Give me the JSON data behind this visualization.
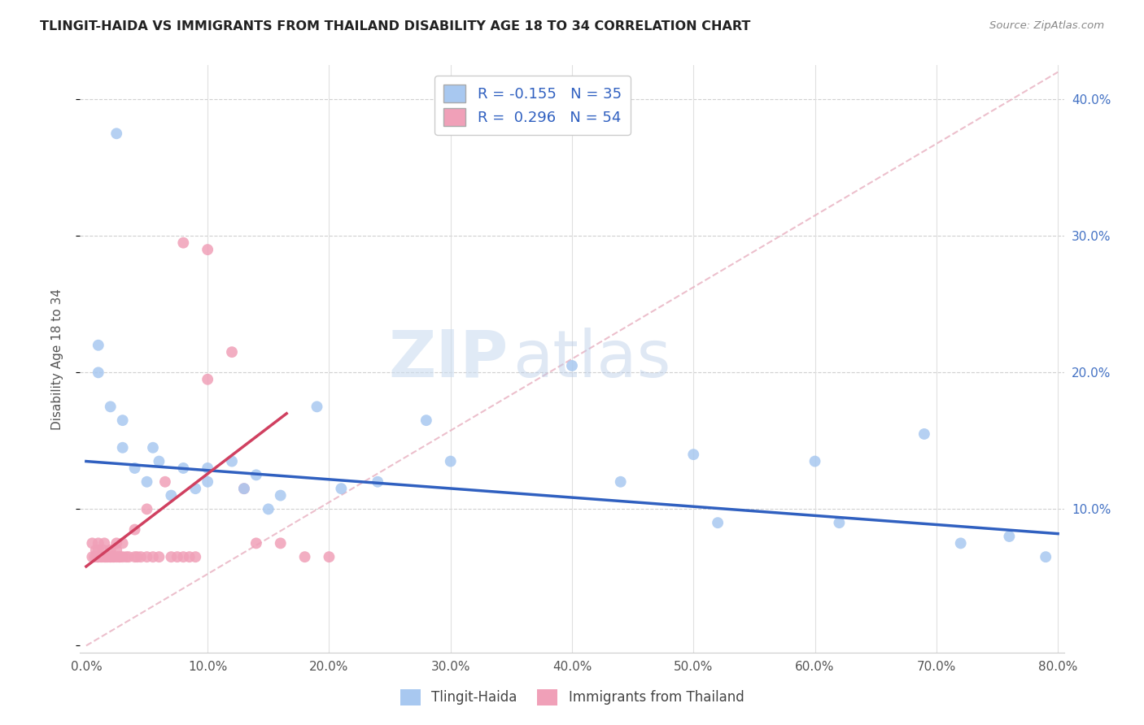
{
  "title": "TLINGIT-HAIDA VS IMMIGRANTS FROM THAILAND DISABILITY AGE 18 TO 34 CORRELATION CHART",
  "source": "Source: ZipAtlas.com",
  "ylabel": "Disability Age 18 to 34",
  "legend_label1": "Tlingit-Haida",
  "legend_label2": "Immigrants from Thailand",
  "r1": "-0.155",
  "n1": "35",
  "r2": "0.296",
  "n2": "54",
  "xlim": [
    -0.005,
    0.805
  ],
  "ylim": [
    -0.005,
    0.425
  ],
  "xticks": [
    0.0,
    0.1,
    0.2,
    0.3,
    0.4,
    0.5,
    0.6,
    0.7,
    0.8
  ],
  "yticks": [
    0.0,
    0.1,
    0.2,
    0.3,
    0.4
  ],
  "color_blue": "#a8c8f0",
  "color_pink": "#f0a0b8",
  "color_blue_line": "#3060c0",
  "color_pink_line": "#d04060",
  "watermark_zip": "ZIP",
  "watermark_atlas": "atlas",
  "blue_scatter_x": [
    0.025,
    0.01,
    0.01,
    0.02,
    0.03,
    0.03,
    0.04,
    0.05,
    0.055,
    0.06,
    0.07,
    0.08,
    0.09,
    0.1,
    0.1,
    0.12,
    0.13,
    0.14,
    0.15,
    0.16,
    0.19,
    0.21,
    0.24,
    0.28,
    0.3,
    0.4,
    0.44,
    0.5,
    0.52,
    0.6,
    0.62,
    0.69,
    0.72,
    0.76,
    0.79
  ],
  "blue_scatter_y": [
    0.375,
    0.22,
    0.2,
    0.175,
    0.165,
    0.145,
    0.13,
    0.12,
    0.145,
    0.135,
    0.11,
    0.13,
    0.115,
    0.13,
    0.12,
    0.135,
    0.115,
    0.125,
    0.1,
    0.11,
    0.175,
    0.115,
    0.12,
    0.165,
    0.135,
    0.205,
    0.12,
    0.14,
    0.09,
    0.135,
    0.09,
    0.155,
    0.075,
    0.08,
    0.065
  ],
  "pink_scatter_x": [
    0.005,
    0.005,
    0.007,
    0.008,
    0.009,
    0.01,
    0.01,
    0.01,
    0.01,
    0.012,
    0.013,
    0.014,
    0.015,
    0.015,
    0.016,
    0.017,
    0.018,
    0.02,
    0.02,
    0.02,
    0.022,
    0.023,
    0.025,
    0.025,
    0.025,
    0.027,
    0.028,
    0.03,
    0.03,
    0.033,
    0.035,
    0.04,
    0.04,
    0.042,
    0.045,
    0.05,
    0.05,
    0.055,
    0.06,
    0.065,
    0.07,
    0.075,
    0.08,
    0.085,
    0.09,
    0.1,
    0.12,
    0.13,
    0.14,
    0.16,
    0.18,
    0.2,
    0.1,
    0.08
  ],
  "pink_scatter_y": [
    0.065,
    0.075,
    0.065,
    0.07,
    0.065,
    0.065,
    0.07,
    0.075,
    0.065,
    0.065,
    0.065,
    0.07,
    0.065,
    0.075,
    0.065,
    0.065,
    0.065,
    0.065,
    0.07,
    0.065,
    0.065,
    0.065,
    0.065,
    0.075,
    0.07,
    0.065,
    0.065,
    0.075,
    0.065,
    0.065,
    0.065,
    0.065,
    0.085,
    0.065,
    0.065,
    0.1,
    0.065,
    0.065,
    0.065,
    0.12,
    0.065,
    0.065,
    0.295,
    0.065,
    0.065,
    0.195,
    0.215,
    0.115,
    0.075,
    0.075,
    0.065,
    0.065,
    0.29,
    0.065
  ],
  "blue_line_x": [
    0.0,
    0.8
  ],
  "blue_line_y": [
    0.135,
    0.082
  ],
  "pink_line_x": [
    0.0,
    0.165
  ],
  "pink_line_y": [
    0.058,
    0.17
  ],
  "diag_line_x": [
    0.0,
    0.8
  ],
  "diag_line_y": [
    0.0,
    0.42
  ]
}
